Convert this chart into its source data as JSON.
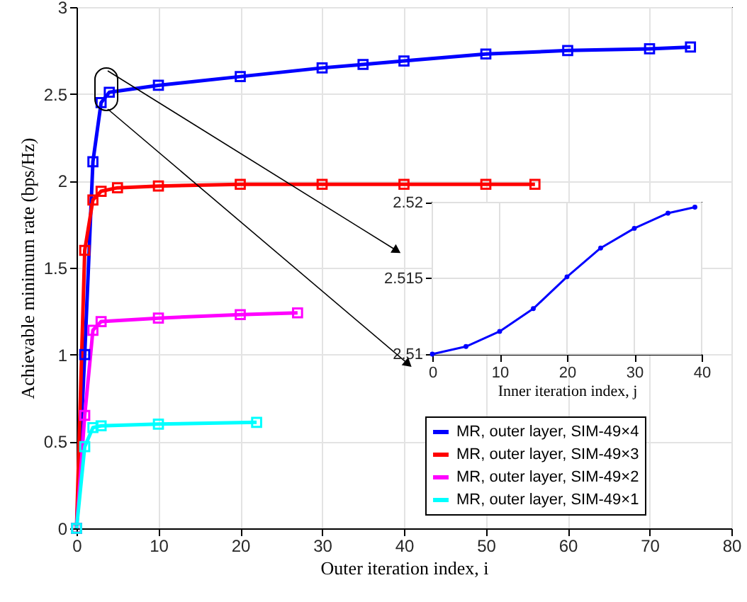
{
  "chart_data": [
    {
      "type": "line",
      "xlabel": "Outer iteration index, i",
      "ylabel": "Achievable minimum rate (bps/Hz)",
      "xlim": [
        0,
        80
      ],
      "xticks": [
        0,
        10,
        20,
        30,
        40,
        50,
        60,
        70,
        80
      ],
      "ylim": [
        0,
        3
      ],
      "yticks": [
        0,
        0.5,
        1,
        1.5,
        2,
        2.5,
        3
      ],
      "grid": true,
      "legend": "bottom right",
      "marker": "square",
      "line_style": "solid",
      "series": [
        {
          "name": "MR, outer layer, SIM-49×4",
          "color": "#0000ff",
          "x": [
            0,
            1,
            2,
            3,
            4,
            10,
            20,
            30,
            35,
            40,
            50,
            60,
            70,
            75
          ],
          "values": [
            0,
            1.0,
            2.11,
            2.45,
            2.51,
            2.55,
            2.6,
            2.65,
            2.67,
            2.69,
            2.73,
            2.75,
            2.76,
            2.77
          ]
        },
        {
          "name": "MR, outer layer, SIM-49×3",
          "color": "#ff0000",
          "x": [
            0,
            1,
            2,
            3,
            5,
            10,
            20,
            30,
            40,
            50,
            56
          ],
          "values": [
            0,
            1.6,
            1.89,
            1.94,
            1.96,
            1.97,
            1.98,
            1.98,
            1.98,
            1.98,
            1.98
          ]
        },
        {
          "name": "MR, outer layer, SIM-49×2",
          "color": "#ff00ff",
          "x": [
            0,
            1,
            2,
            3,
            10,
            20,
            27
          ],
          "values": [
            0,
            0.65,
            1.14,
            1.19,
            1.21,
            1.23,
            1.24
          ]
        },
        {
          "name": "MR, outer layer, SIM-49×1",
          "color": "#00ffff",
          "x": [
            0,
            1,
            2,
            3,
            10,
            22
          ],
          "values": [
            0,
            0.47,
            0.58,
            0.59,
            0.6,
            0.61
          ]
        }
      ]
    },
    {
      "type": "line",
      "xlabel": "Inner iteration index, j",
      "xlim": [
        0,
        40
      ],
      "xticks": [
        0,
        10,
        20,
        30,
        40
      ],
      "ylim": [
        2.51,
        2.52
      ],
      "yticks": [
        2.51,
        2.515,
        2.52
      ],
      "grid": true,
      "marker": "circle",
      "line_style": "solid",
      "series": [
        {
          "color": "#0000ff",
          "x": [
            0,
            5,
            10,
            15,
            20,
            25,
            30,
            35,
            39
          ],
          "values": [
            2.51,
            2.5105,
            2.5115,
            2.513,
            2.5151,
            2.517,
            2.5183,
            2.5193,
            2.5197
          ]
        }
      ]
    }
  ]
}
